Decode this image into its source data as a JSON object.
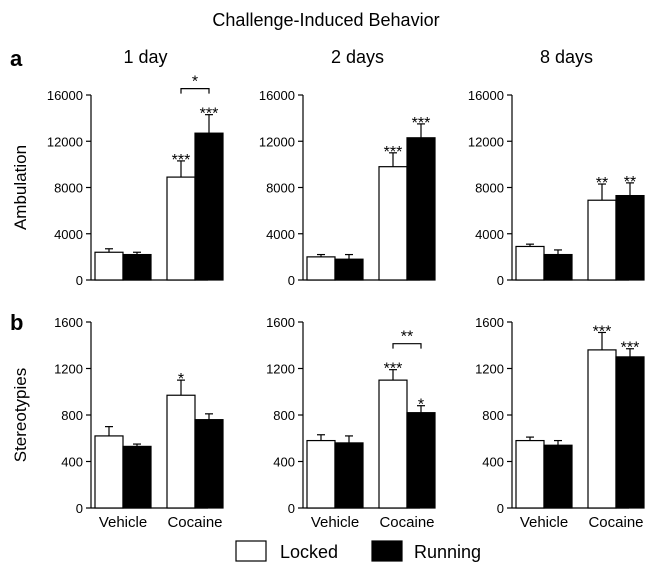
{
  "title": "Challenge-Induced Behavior",
  "row_labels": [
    "a",
    "b"
  ],
  "legend": {
    "items": [
      {
        "label": "Locked",
        "color": "#ffffff"
      },
      {
        "label": "Running",
        "color": "#000000"
      }
    ]
  },
  "chart_data": [
    {
      "type": "bar",
      "panel": "a",
      "title": "1 day",
      "ylabel": "Ambulation",
      "categories": [
        "Vehicle",
        "Cocaine"
      ],
      "ylim": [
        0,
        16000
      ],
      "yticks": [
        0,
        4000,
        8000,
        12000,
        16000
      ],
      "series": [
        {
          "name": "Locked",
          "color": "#ffffff",
          "values": [
            2400,
            8900
          ],
          "errors": [
            300,
            1400
          ]
        },
        {
          "name": "Running",
          "color": "#000000",
          "values": [
            2200,
            12700
          ],
          "errors": [
            200,
            1600
          ]
        }
      ],
      "bar_annotations": [
        {
          "category": 1,
          "series": 0,
          "text": "***"
        },
        {
          "category": 1,
          "series": 1,
          "text": "***"
        }
      ],
      "brackets": [
        {
          "category": 1,
          "text": "*"
        }
      ]
    },
    {
      "type": "bar",
      "panel": "a",
      "title": "2 days",
      "ylabel": "",
      "categories": [
        "Vehicle",
        "Cocaine"
      ],
      "ylim": [
        0,
        16000
      ],
      "yticks": [
        0,
        4000,
        8000,
        12000,
        16000
      ],
      "series": [
        {
          "name": "Locked",
          "color": "#ffffff",
          "values": [
            2000,
            9800
          ],
          "errors": [
            200,
            1200
          ]
        },
        {
          "name": "Running",
          "color": "#000000",
          "values": [
            1800,
            12300
          ],
          "errors": [
            400,
            1200
          ]
        }
      ],
      "bar_annotations": [
        {
          "category": 1,
          "series": 0,
          "text": "***"
        },
        {
          "category": 1,
          "series": 1,
          "text": "***"
        }
      ],
      "brackets": []
    },
    {
      "type": "bar",
      "panel": "a",
      "title": "8 days",
      "ylabel": "",
      "categories": [
        "Vehicle",
        "Cocaine"
      ],
      "ylim": [
        0,
        16000
      ],
      "yticks": [
        0,
        4000,
        8000,
        12000,
        16000
      ],
      "series": [
        {
          "name": "Locked",
          "color": "#ffffff",
          "values": [
            2900,
            6900
          ],
          "errors": [
            200,
            1400
          ]
        },
        {
          "name": "Running",
          "color": "#000000",
          "values": [
            2200,
            7300
          ],
          "errors": [
            400,
            1100
          ]
        }
      ],
      "bar_annotations": [
        {
          "category": 1,
          "series": 0,
          "text": "**"
        },
        {
          "category": 1,
          "series": 1,
          "text": "**"
        }
      ],
      "brackets": []
    },
    {
      "type": "bar",
      "panel": "b",
      "title": "",
      "ylabel": "Stereotypies",
      "categories": [
        "Vehicle",
        "Cocaine"
      ],
      "ylim": [
        0,
        1600
      ],
      "yticks": [
        0,
        400,
        800,
        1200,
        1600
      ],
      "series": [
        {
          "name": "Locked",
          "color": "#ffffff",
          "values": [
            620,
            970
          ],
          "errors": [
            80,
            130
          ]
        },
        {
          "name": "Running",
          "color": "#000000",
          "values": [
            530,
            760
          ],
          "errors": [
            20,
            50
          ]
        }
      ],
      "bar_annotations": [
        {
          "category": 1,
          "series": 0,
          "text": "*"
        }
      ],
      "brackets": []
    },
    {
      "type": "bar",
      "panel": "b",
      "title": "",
      "ylabel": "",
      "categories": [
        "Vehicle",
        "Cocaine"
      ],
      "ylim": [
        0,
        1600
      ],
      "yticks": [
        0,
        400,
        800,
        1200,
        1600
      ],
      "series": [
        {
          "name": "Locked",
          "color": "#ffffff",
          "values": [
            580,
            1100
          ],
          "errors": [
            50,
            90
          ]
        },
        {
          "name": "Running",
          "color": "#000000",
          "values": [
            560,
            820
          ],
          "errors": [
            60,
            60
          ]
        }
      ],
      "bar_annotations": [
        {
          "category": 1,
          "series": 0,
          "text": "***"
        },
        {
          "category": 1,
          "series": 1,
          "text": "*"
        }
      ],
      "brackets": [
        {
          "category": 1,
          "text": "**"
        }
      ]
    },
    {
      "type": "bar",
      "panel": "b",
      "title": "",
      "ylabel": "",
      "categories": [
        "Vehicle",
        "Cocaine"
      ],
      "ylim": [
        0,
        1600
      ],
      "yticks": [
        0,
        400,
        800,
        1200,
        1600
      ],
      "series": [
        {
          "name": "Locked",
          "color": "#ffffff",
          "values": [
            580,
            1360
          ],
          "errors": [
            30,
            150
          ]
        },
        {
          "name": "Running",
          "color": "#000000",
          "values": [
            540,
            1300
          ],
          "errors": [
            40,
            70
          ]
        }
      ],
      "bar_annotations": [
        {
          "category": 1,
          "series": 0,
          "text": "***"
        },
        {
          "category": 1,
          "series": 1,
          "text": "***"
        }
      ],
      "brackets": []
    }
  ]
}
